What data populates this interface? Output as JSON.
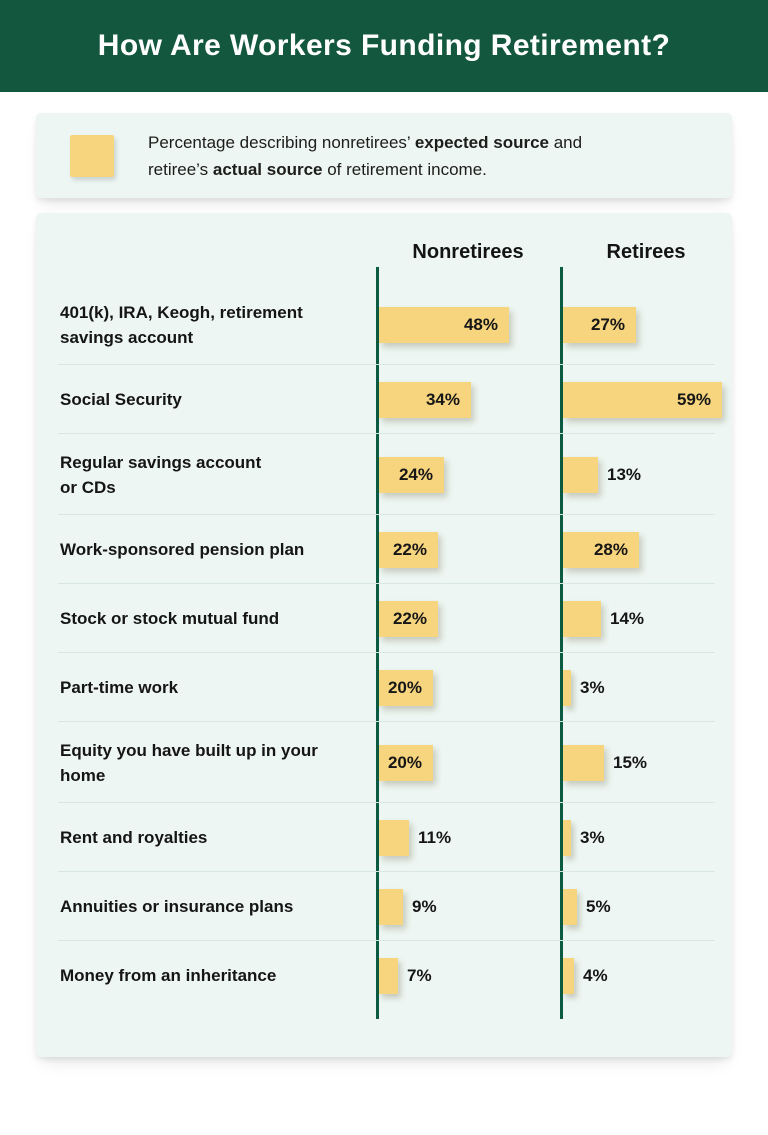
{
  "header": {
    "title": "How Are Workers Funding Retirement?"
  },
  "legend": {
    "swatch_icon": "bar-swatch",
    "lines": [
      [
        {
          "t": "Percentage describing nonretirees’ "
        },
        {
          "t": "expected source",
          "b": true
        },
        {
          "t": " and"
        }
      ],
      [
        {
          "t": "retiree’s "
        },
        {
          "t": "actual source",
          "b": true
        },
        {
          "t": " of retirement income."
        }
      ]
    ]
  },
  "chart_data": {
    "type": "bar",
    "title": "How Are Workers Funding Retirement?",
    "note": "Percentage describing nonretirees’ expected source and retiree’s actual source of retirement income.",
    "orientation": "horizontal",
    "unit": "%",
    "xlim": [
      0,
      63
    ],
    "grid": false,
    "legend_position": "top-note",
    "categories": [
      "401(k), IRA, Keogh, retirement\nsavings account",
      "Social Security",
      "Regular savings account\nor CDs",
      "Work-sponsored pension plan",
      "Stock or stock mutual fund",
      "Part-time work",
      "Equity you have built up in  your\nhome",
      "Rent and royalties",
      "Annuities or insurance plans",
      "Money from an inheritance"
    ],
    "series": [
      {
        "name": "Nonretirees",
        "values": [
          48,
          34,
          24,
          22,
          22,
          20,
          20,
          11,
          9,
          7
        ]
      },
      {
        "name": "Retirees",
        "values": [
          27,
          59,
          13,
          28,
          14,
          3,
          15,
          3,
          5,
          4
        ]
      }
    ]
  },
  "colors": {
    "header_bg": "#14573F",
    "panel_bg": "#EDF6F2",
    "bar_fill": "#F7D57F",
    "axis_line": "#0A5B41",
    "separator": "#D8E8E1",
    "text_dark": "#1B1B1B",
    "title_text": "#FFFFFF"
  }
}
